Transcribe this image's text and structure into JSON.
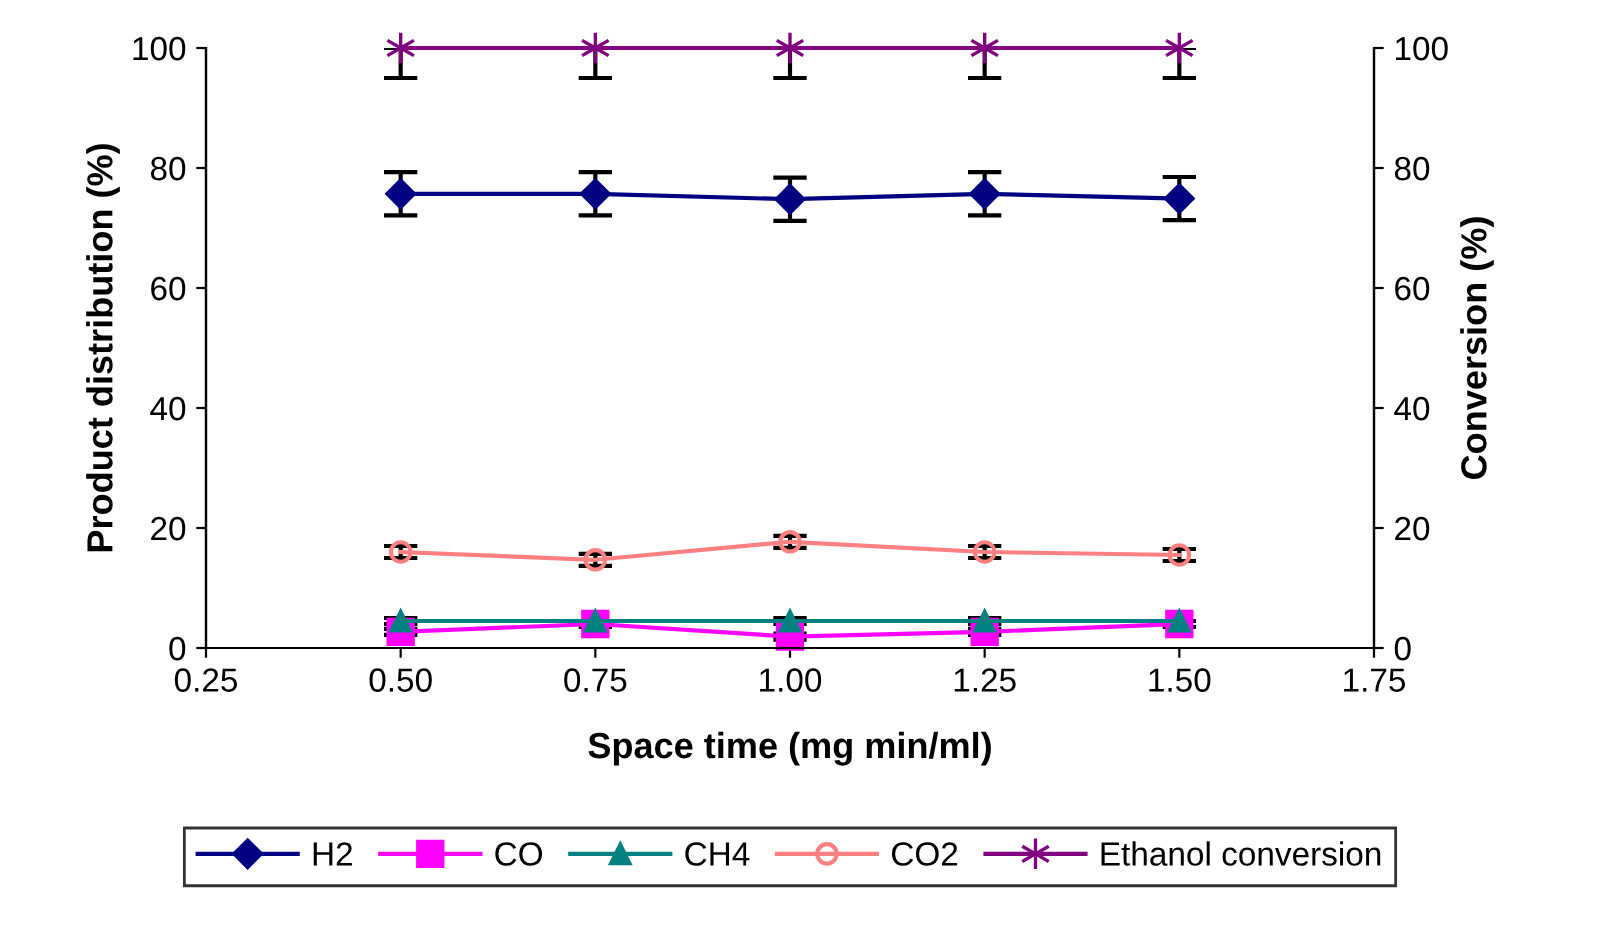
{
  "chart_data": {
    "type": "line",
    "xlabel": "Space time (mg min/ml)",
    "ylabel": "Product distribution (%)",
    "y2label": "Conversion (%)",
    "x": [
      0.5,
      0.75,
      1.0,
      1.25,
      1.5
    ],
    "xlim": [
      0.25,
      1.75
    ],
    "xticks": [
      {
        "value": 0.25,
        "label": "0.25"
      },
      {
        "value": 0.5,
        "label": "0.50"
      },
      {
        "value": 0.75,
        "label": "0.75"
      },
      {
        "value": 1.0,
        "label": "1.00"
      },
      {
        "value": 1.25,
        "label": "1.25"
      },
      {
        "value": 1.5,
        "label": "1.50"
      },
      {
        "value": 1.75,
        "label": "1.75"
      }
    ],
    "ylim": [
      0,
      100
    ],
    "yticks": [
      0,
      20,
      40,
      60,
      80,
      100
    ],
    "y2lim": [
      0,
      100
    ],
    "y2ticks": [
      0,
      20,
      40,
      60,
      80,
      100
    ],
    "grid": false,
    "legend": "bottom",
    "line_style": "solid",
    "series": [
      {
        "name": "H2",
        "color": "#000080",
        "marker": "diamond",
        "values": [
          75.7,
          75.7,
          74.8,
          75.7,
          74.9
        ],
        "errors": [
          3.6,
          3.6,
          3.6,
          3.6,
          3.6
        ]
      },
      {
        "name": "CO",
        "color": "#ff00ff",
        "marker": "square",
        "values": [
          2.7,
          4.0,
          1.9,
          2.7,
          4.0
        ],
        "errors": [
          0.5,
          0.5,
          0.5,
          0.5,
          0.5
        ]
      },
      {
        "name": "CH4",
        "color": "#008080",
        "marker": "triangle",
        "values": [
          4.5,
          4.5,
          4.5,
          4.5,
          4.5
        ],
        "errors": [
          0.5,
          null,
          0.5,
          0.5,
          null
        ]
      },
      {
        "name": "CO2",
        "color": "#ff8080",
        "marker": "circle",
        "values": [
          16,
          14.7,
          17.7,
          16,
          15.5
        ],
        "errors": [
          1,
          1,
          1,
          1,
          1
        ]
      },
      {
        "name": "Ethanol conversion",
        "color": "#800080",
        "marker": "cross",
        "values": [
          100,
          100,
          100,
          100,
          100
        ],
        "errors": [
          [
            95,
            100
          ],
          [
            95,
            100
          ],
          [
            95,
            100
          ],
          [
            95,
            100
          ],
          [
            95,
            100
          ]
        ]
      }
    ]
  }
}
